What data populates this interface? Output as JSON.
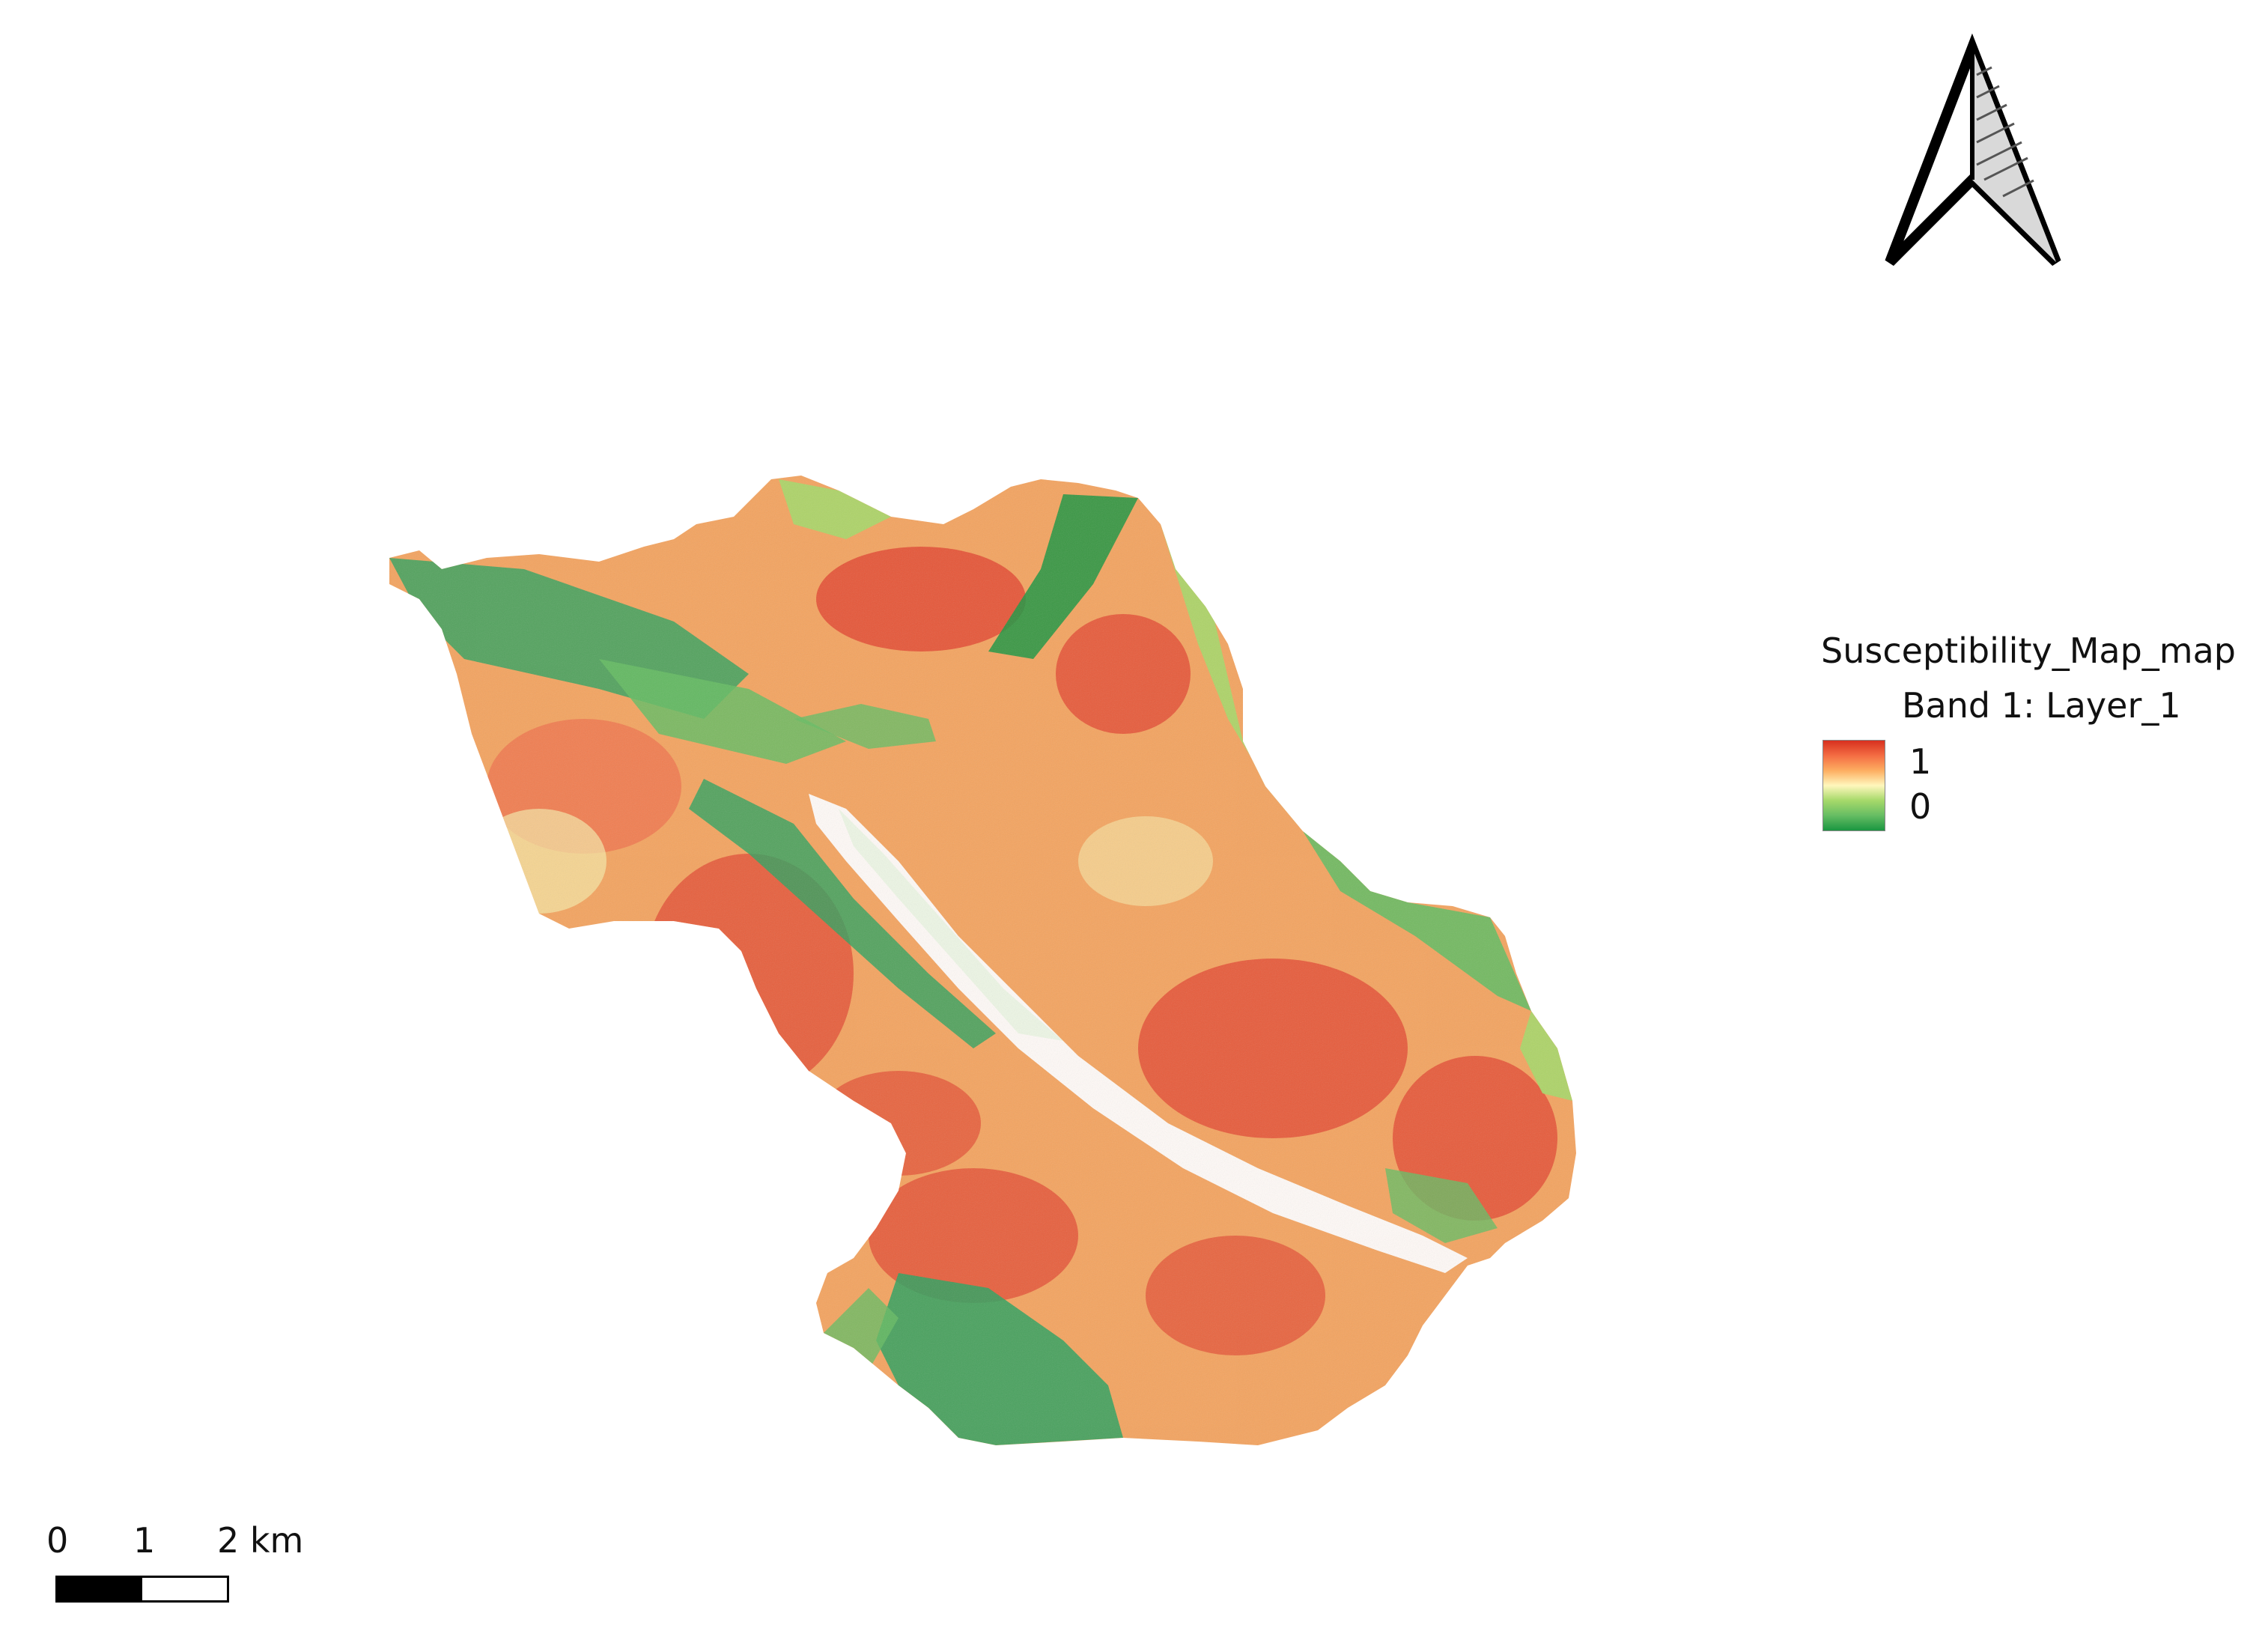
{
  "legend": {
    "layer_name": "Susceptibility_Map_map",
    "band_label": "Band 1: Layer_1",
    "max_label": "1",
    "min_label": "0",
    "ramp_colors": [
      "#d7301f",
      "#f46d43",
      "#fdae61",
      "#fff7bc",
      "#a6d96a",
      "#66bd63",
      "#1a9641"
    ]
  },
  "scale_bar": {
    "labels": [
      "0",
      "1",
      "2 km"
    ],
    "segment_colors": [
      "#000000",
      "#ffffff"
    ]
  },
  "north_arrow": {
    "icon": "north-arrow-icon"
  },
  "map_colors": {
    "high": "#e34a33",
    "mid_high": "#f4a460",
    "mid": "#f7e9a8",
    "low": "#a6d96a",
    "very_low": "#2ca25f",
    "valley": "#ffffff"
  }
}
